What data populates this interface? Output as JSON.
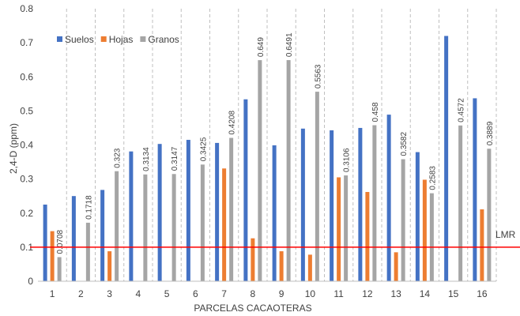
{
  "chart_data": {
    "type": "bar",
    "xlabel": "PARCELAS CACAOTERAS",
    "ylabel": "2,4-D (ppm)",
    "ylim": [
      0,
      0.8
    ],
    "yticks": [
      "0",
      "0.1",
      "0.2",
      "0.3",
      "0.4",
      "0.5",
      "0.6",
      "0.7",
      "0.8"
    ],
    "categories": [
      "1",
      "2",
      "3",
      "4",
      "5",
      "6",
      "7",
      "8",
      "9",
      "10",
      "11",
      "12",
      "13",
      "14",
      "15",
      "16"
    ],
    "series": [
      {
        "name": "Suelos",
        "color": "#4472C4",
        "values": [
          0.225,
          0.25,
          0.268,
          0.381,
          0.403,
          0.415,
          0.406,
          0.534,
          0.399,
          0.448,
          0.443,
          0.45,
          0.489,
          0.379,
          0.72,
          0.537
        ]
      },
      {
        "name": "Hojas",
        "color": "#ED7D31",
        "values": [
          0.147,
          null,
          0.088,
          null,
          null,
          null,
          0.331,
          0.126,
          0.088,
          0.078,
          0.305,
          0.262,
          0.085,
          0.298,
          null,
          0.211
        ]
      },
      {
        "name": "Granos",
        "color": "#A5A5A5",
        "values": [
          0.0708,
          0.1718,
          0.323,
          0.3134,
          0.3147,
          0.3425,
          0.4208,
          0.649,
          0.6491,
          0.5563,
          0.3106,
          0.458,
          0.3582,
          0.2583,
          0.4572,
          0.3889
        ]
      }
    ],
    "data_labels": {
      "series": "Granos",
      "labels": [
        "0.0708",
        "0.1718",
        "0.323",
        "0.3134",
        "0.3147",
        "0.3425",
        "0.4208",
        "0.649",
        "0.6491",
        "0.5563",
        "0.3106",
        "0.458",
        "0.3582",
        "0.2583",
        "0.4572",
        "0.3889"
      ]
    },
    "reference_line": {
      "label": "LMR",
      "value": 0.1,
      "color": "#FF0000"
    },
    "legend": {
      "position": "top-left"
    },
    "grid": {
      "vertical_dashed": true,
      "horizontal": false
    }
  }
}
